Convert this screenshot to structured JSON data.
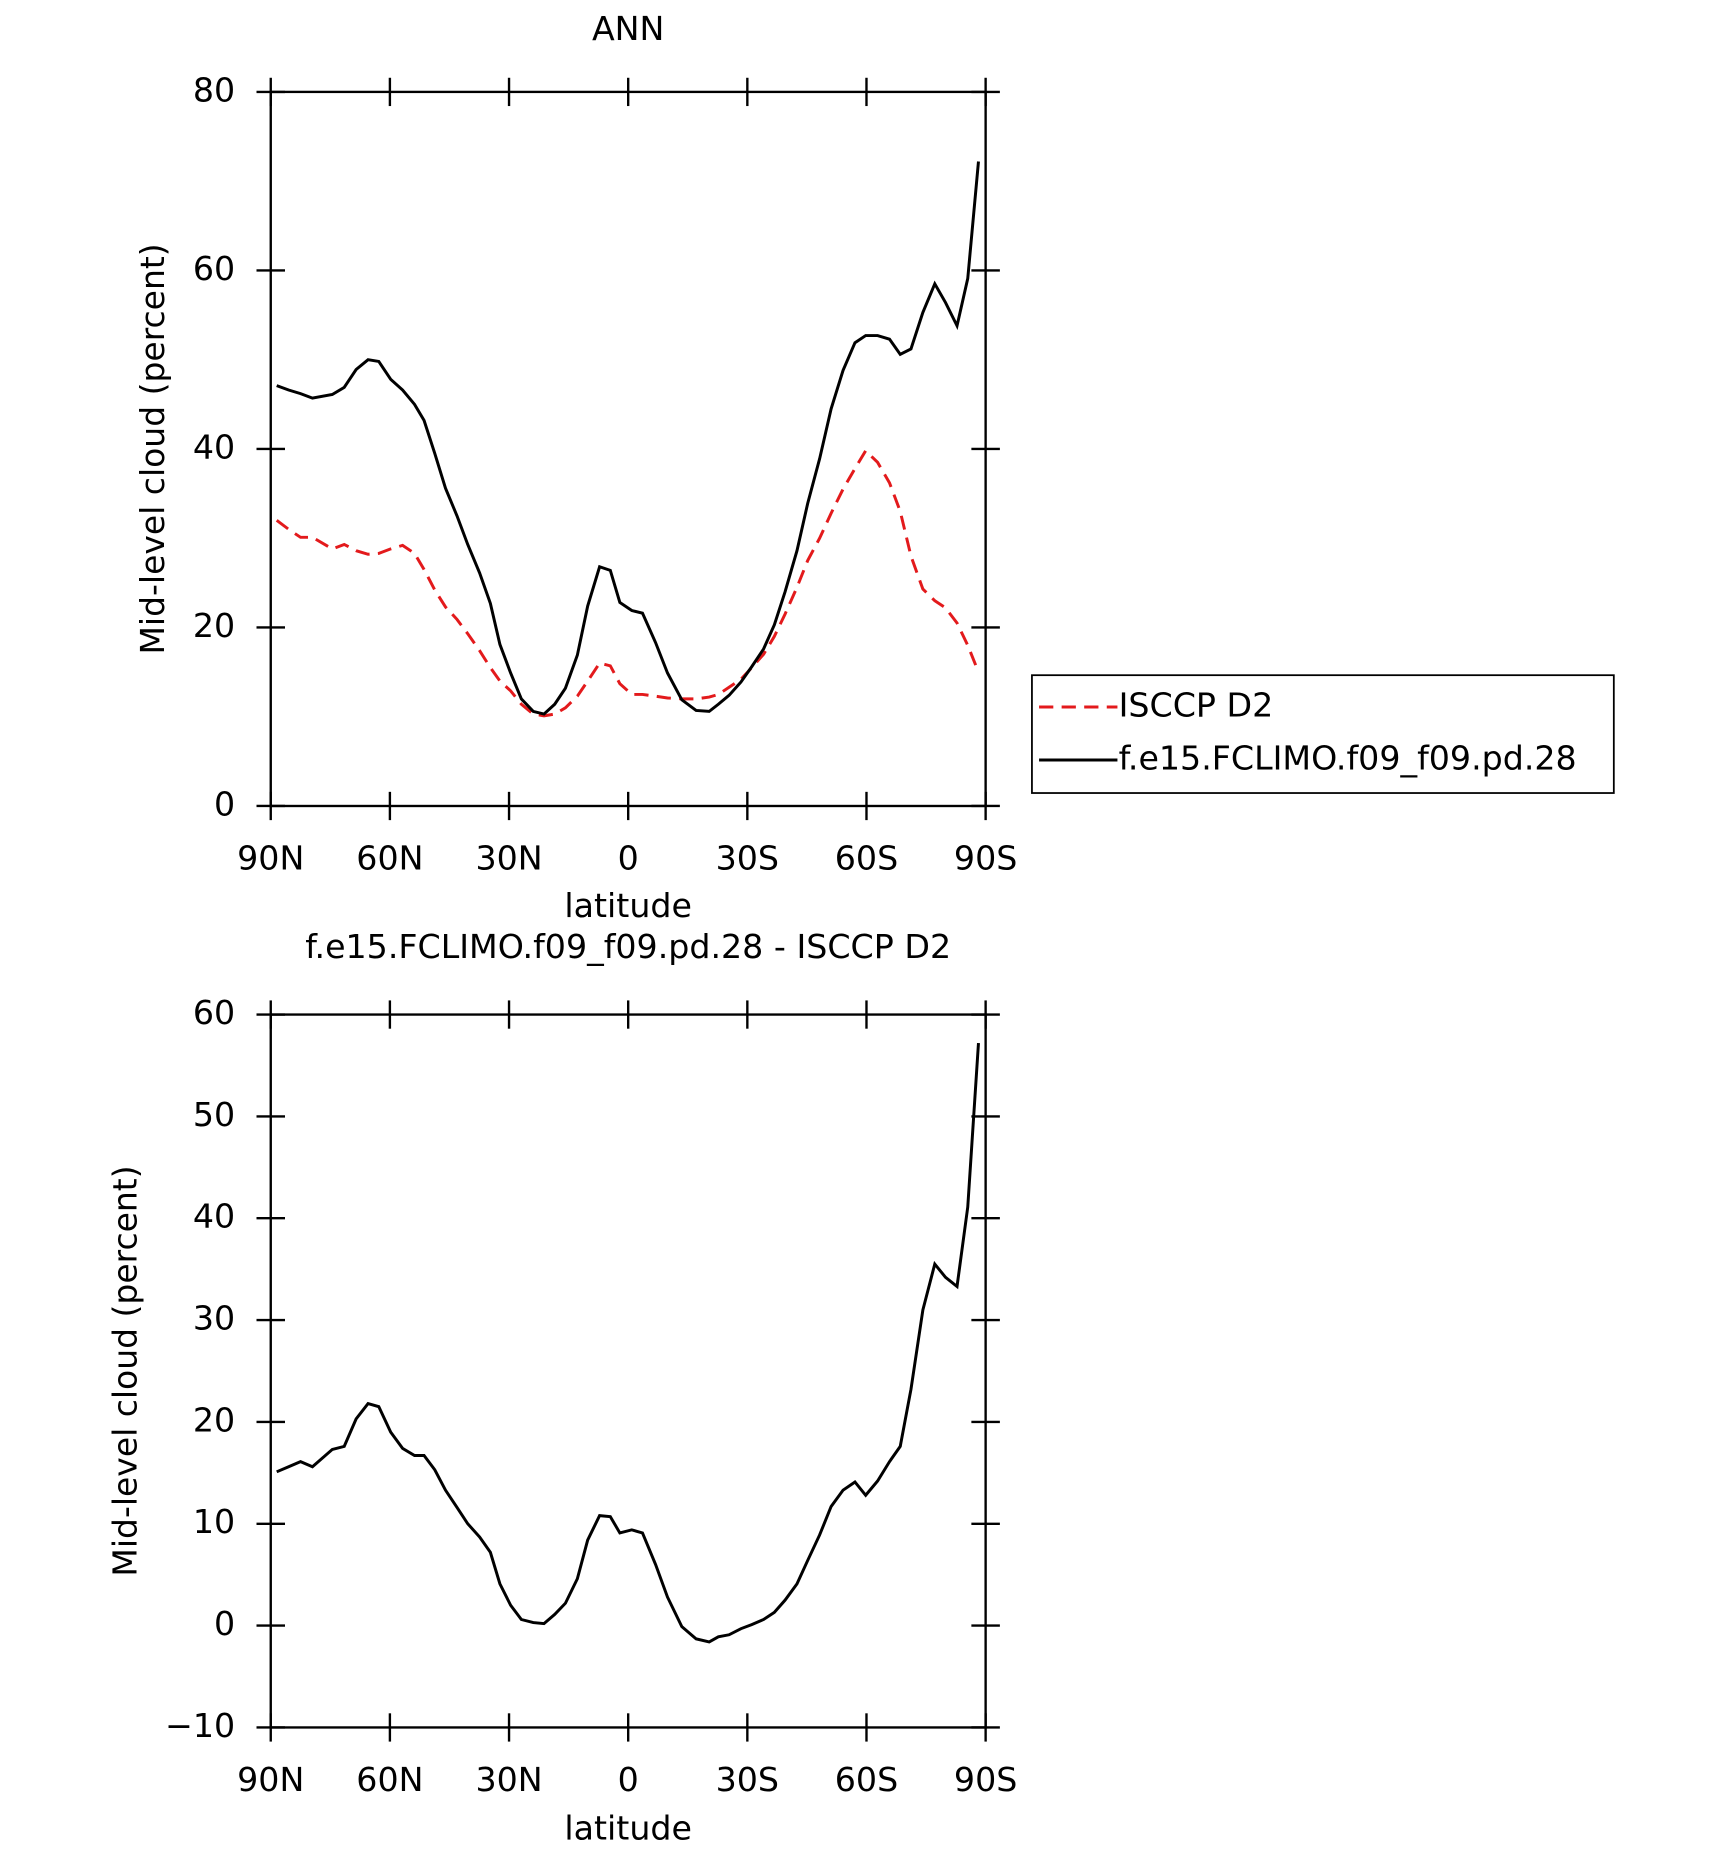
{
  "chart_data": [
    {
      "type": "line",
      "title": "ANN",
      "xlabel": "latitude",
      "ylabel": "Mid-level cloud (percent)",
      "xlim": [
        90,
        -90
      ],
      "xticks": [
        {
          "value": 90,
          "label": "90N"
        },
        {
          "value": 60,
          "label": "60N"
        },
        {
          "value": 30,
          "label": "30N"
        },
        0,
        {
          "value": -30,
          "label": "30S"
        },
        {
          "value": -60,
          "label": "60S"
        },
        {
          "value": -90,
          "label": "90S"
        }
      ],
      "ylim": [
        0,
        80
      ],
      "yticks": [
        0,
        20,
        40,
        60,
        80
      ],
      "legend": "right",
      "x": [
        88.5,
        85.5,
        82.5,
        79.5,
        74.5,
        71.5,
        68.5,
        65.5,
        62.8,
        59.8,
        56.8,
        53.8,
        51.4,
        48.7,
        46.0,
        43.1,
        40.4,
        37.4,
        34.7,
        32.3,
        29.6,
        26.9,
        23.9,
        21.2,
        18.5,
        15.8,
        12.8,
        10.2,
        7.2,
        4.5,
        2.1,
        -0.9,
        -3.6,
        -6.9,
        -9.9,
        -13.5,
        -17.1,
        -20.4,
        -22.7,
        -25.4,
        -28.4,
        -31.1,
        -34.1,
        -36.8,
        -39.5,
        -42.5,
        -45.2,
        -48.2,
        -51.1,
        -54.1,
        -57.1,
        -59.8,
        -62.8,
        -65.8,
        -68.5,
        -71.2,
        -74.2,
        -77.2,
        -79.9,
        -82.8,
        -85.5,
        -88.2
      ],
      "series": [
        {
          "name": "ISCCP D2",
          "color": "#e31a1c",
          "dashed": true,
          "values": [
            32.0,
            31.0,
            30.1,
            30.1,
            28.8,
            29.3,
            28.6,
            28.2,
            28.3,
            28.8,
            29.2,
            28.3,
            26.5,
            24.2,
            22.3,
            20.9,
            19.3,
            17.4,
            15.5,
            14.0,
            12.9,
            11.4,
            10.3,
            10.1,
            10.3,
            11.0,
            12.3,
            14.0,
            16.0,
            15.7,
            13.7,
            12.5,
            12.5,
            12.3,
            12.1,
            12.0,
            12.0,
            12.2,
            12.5,
            13.3,
            14.2,
            15.5,
            17.0,
            19.0,
            21.5,
            24.5,
            27.5,
            30.0,
            32.8,
            35.5,
            37.8,
            39.8,
            38.5,
            36.2,
            33.0,
            28.0,
            24.3,
            23.0,
            22.2,
            20.5,
            18.0,
            15.0
          ]
        },
        {
          "name": "f.e15.FCLIMO.f09_f09.pd.28",
          "color": "#000000",
          "dashed": false,
          "values": [
            47.1,
            46.6,
            46.2,
            45.7,
            46.1,
            46.9,
            48.9,
            50.0,
            49.8,
            47.8,
            46.6,
            45.0,
            43.2,
            39.5,
            35.6,
            32.5,
            29.3,
            26.1,
            22.7,
            18.1,
            14.9,
            12.0,
            10.6,
            10.3,
            11.4,
            13.2,
            16.9,
            22.4,
            26.8,
            26.4,
            22.8,
            21.9,
            21.6,
            18.3,
            14.9,
            11.9,
            10.7,
            10.6,
            11.4,
            12.4,
            13.9,
            15.6,
            17.6,
            20.3,
            24.0,
            28.6,
            33.9,
            38.9,
            44.5,
            48.8,
            51.9,
            52.7,
            52.7,
            52.3,
            50.6,
            51.2,
            55.3,
            58.5,
            56.4,
            53.8,
            59.1,
            72.2
          ]
        }
      ]
    },
    {
      "type": "line",
      "title": "f.e15.FCLIMO.f09_f09.pd.28 - ISCCP D2",
      "xlabel": "latitude",
      "ylabel": "Mid-level cloud (percent)",
      "xlim": [
        90,
        -90
      ],
      "xticks": [
        {
          "value": 90,
          "label": "90N"
        },
        {
          "value": 60,
          "label": "60N"
        },
        {
          "value": 30,
          "label": "30N"
        },
        0,
        {
          "value": -30,
          "label": "30S"
        },
        {
          "value": -60,
          "label": "60S"
        },
        {
          "value": -90,
          "label": "90S"
        }
      ],
      "ylim": [
        -10,
        60
      ],
      "yticks": [
        {
          "value": -10,
          "label": "−10"
        },
        0,
        10,
        20,
        30,
        40,
        50,
        60
      ],
      "x": [
        88.5,
        85.5,
        82.5,
        79.5,
        74.5,
        71.5,
        68.5,
        65.5,
        62.8,
        59.8,
        56.8,
        53.8,
        51.4,
        48.7,
        46.0,
        43.1,
        40.4,
        37.4,
        34.7,
        32.3,
        29.6,
        26.9,
        23.9,
        21.2,
        18.5,
        15.8,
        12.8,
        10.2,
        7.2,
        4.5,
        2.1,
        -0.9,
        -3.6,
        -6.9,
        -9.9,
        -13.5,
        -17.1,
        -20.4,
        -22.7,
        -25.4,
        -28.4,
        -31.1,
        -34.1,
        -36.8,
        -39.5,
        -42.5,
        -45.2,
        -48.2,
        -51.1,
        -54.1,
        -57.1,
        -59.8,
        -62.8,
        -65.8,
        -68.5,
        -71.2,
        -74.2,
        -77.2,
        -79.9,
        -82.8,
        -85.5,
        -88.2
      ],
      "color": "#000000",
      "values": [
        15.1,
        15.6,
        16.1,
        15.6,
        17.3,
        17.6,
        20.3,
        21.8,
        21.5,
        19.0,
        17.4,
        16.7,
        16.7,
        15.3,
        13.3,
        11.6,
        10.0,
        8.7,
        7.2,
        4.1,
        2.0,
        0.6,
        0.3,
        0.2,
        1.1,
        2.2,
        4.6,
        8.4,
        10.8,
        10.7,
        9.1,
        9.4,
        9.1,
        6.0,
        2.8,
        -0.1,
        -1.3,
        -1.6,
        -1.1,
        -0.9,
        -0.3,
        0.1,
        0.6,
        1.3,
        2.5,
        4.1,
        6.4,
        8.9,
        11.7,
        13.3,
        14.1,
        12.8,
        14.2,
        16.1,
        17.6,
        23.2,
        31.0,
        35.5,
        34.2,
        33.3,
        41.1,
        57.2
      ]
    }
  ]
}
